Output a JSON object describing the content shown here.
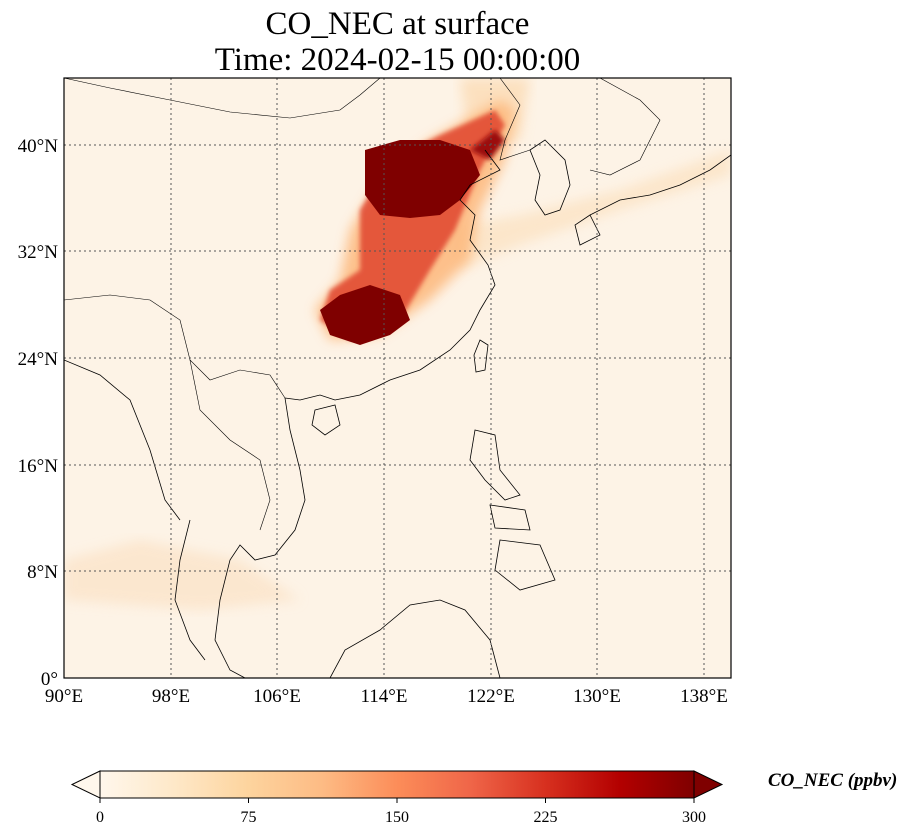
{
  "title": {
    "line1": "CO_NEC at surface",
    "line2": "Time: 2024-02-15 00:00:00"
  },
  "map": {
    "lat_ticks": [
      "0°",
      "8°N",
      "16°N",
      "24°N",
      "32°N",
      "40°N"
    ],
    "lon_ticks": [
      "90°E",
      "98°E",
      "106°E",
      "114°E",
      "122°E",
      "130°E",
      "138°E"
    ],
    "extent": {
      "lon_min": 90,
      "lon_max": 140,
      "lat_min": 0,
      "lat_max": 45
    },
    "gridlines": true
  },
  "colorbar": {
    "label": "CO_NEC (ppbv)",
    "ticks": [
      "0",
      "75",
      "150",
      "225",
      "300"
    ],
    "range": [
      0,
      300
    ],
    "extend": "both",
    "colormap": "OrRd",
    "colors": [
      "#fff7ec",
      "#fee8c8",
      "#fdd49e",
      "#fdbb84",
      "#fc8d59",
      "#ef6548",
      "#d7301f",
      "#b30000",
      "#7f0000"
    ]
  }
}
